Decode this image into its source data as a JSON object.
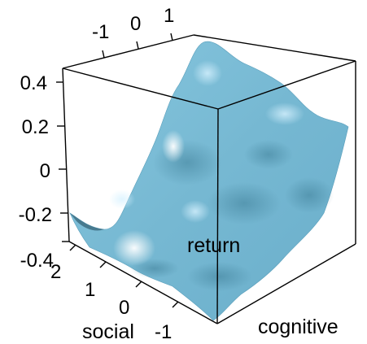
{
  "chart_data": {
    "type": "surface3d",
    "title": "",
    "xlabel": "cognitive",
    "ylabel": "social",
    "zlabel": "return",
    "x_ticks": [
      "-1",
      "0",
      "1"
    ],
    "y_ticks": [
      "-1",
      "0",
      "1",
      "2"
    ],
    "z_ticks": [
      "-0.4",
      "-0.2",
      "0",
      "0.2",
      "0.4"
    ],
    "xlim": [
      -1.6,
      1.6
    ],
    "ylim": [
      -1.6,
      2.4
    ],
    "zlim": [
      -0.45,
      0.45
    ],
    "surface_color": "#7fbfd8",
    "box_color": "#000000"
  }
}
